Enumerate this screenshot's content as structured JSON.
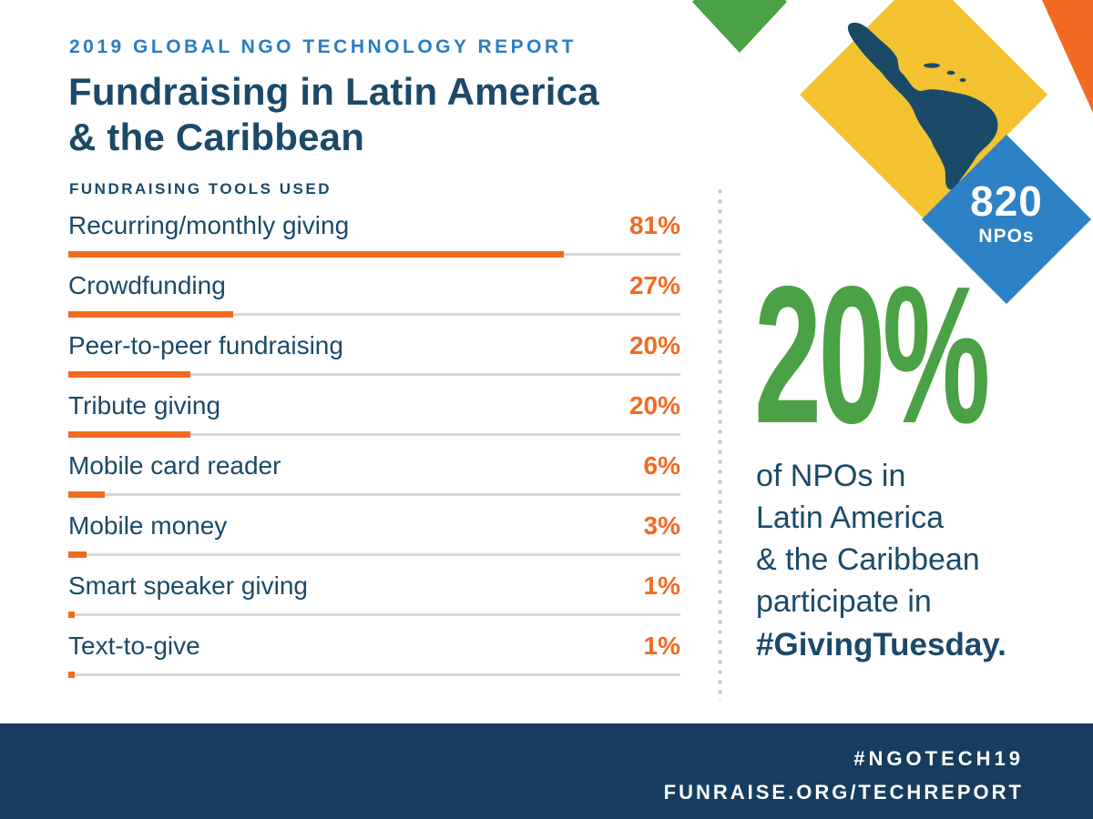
{
  "header": {
    "eyebrow": "2019 GLOBAL NGO TECHNOLOGY REPORT",
    "title_line1": "Fundraising in Latin America",
    "title_line2": "& the Caribbean",
    "section_label": "FUNDRAISING TOOLS USED"
  },
  "chart_data": {
    "type": "bar",
    "orientation": "horizontal",
    "title": "Fundraising tools used",
    "categories": [
      "Recurring/monthly giving",
      "Crowdfunding",
      "Peer-to-peer fundraising",
      "Tribute giving",
      "Mobile card reader",
      "Mobile money",
      "Smart speaker giving",
      "Text-to-give"
    ],
    "values": [
      81,
      27,
      20,
      20,
      6,
      3,
      1,
      1
    ],
    "unit": "%",
    "xlim": [
      0,
      100
    ],
    "bar_color": "#f26a21",
    "track_color": "#d8d8d8",
    "grid": false,
    "legend": false
  },
  "badge": {
    "number": "820",
    "label": "NPOs"
  },
  "stat": {
    "value": "20%",
    "lines": [
      "of NPOs in",
      "Latin America",
      "& the Caribbean",
      "participate in"
    ],
    "bold_line": "#GivingTuesday."
  },
  "footer": {
    "line1": "#NGOTECH19",
    "line2": "FUNRAISE.ORG/TECHREPORT"
  },
  "colors": {
    "navy": "#1b4a68",
    "footer_navy": "#163d5f",
    "eyebrow_blue": "#2b7cc4",
    "orange": "#f26a21",
    "green": "#4ba145",
    "yellow": "#f2c230",
    "diamond_blue": "#2e81c4",
    "track_gray": "#d8d8d8"
  }
}
